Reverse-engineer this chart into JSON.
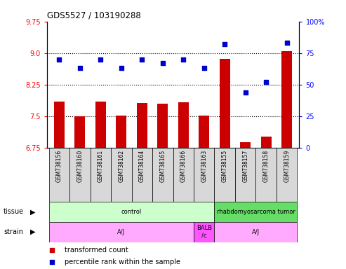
{
  "title": "GDS5527 / 103190288",
  "samples": [
    "GSM738156",
    "GSM738160",
    "GSM738161",
    "GSM738162",
    "GSM738164",
    "GSM738165",
    "GSM738166",
    "GSM738163",
    "GSM738155",
    "GSM738157",
    "GSM738158",
    "GSM738159"
  ],
  "bar_values": [
    7.85,
    7.5,
    7.85,
    7.52,
    7.82,
    7.8,
    7.83,
    7.52,
    8.87,
    6.88,
    7.02,
    9.05
  ],
  "dot_values": [
    70,
    63,
    70,
    63,
    70,
    67,
    70,
    63,
    82,
    44,
    52,
    83
  ],
  "ylim_left": [
    6.75,
    9.75
  ],
  "ylim_right": [
    0,
    100
  ],
  "yticks_left": [
    6.75,
    7.5,
    8.25,
    9.0,
    9.75
  ],
  "yticks_right": [
    0,
    25,
    50,
    75,
    100
  ],
  "hlines": [
    7.5,
    8.25,
    9.0
  ],
  "tissue_groups": [
    {
      "label": "control",
      "start": 0,
      "end": 8,
      "color": "#ccffcc"
    },
    {
      "label": "rhabdomyosarcoma tumor",
      "start": 8,
      "end": 12,
      "color": "#66dd66"
    }
  ],
  "strain_groups": [
    {
      "label": "A/J",
      "start": 0,
      "end": 7,
      "color": "#ffaaff"
    },
    {
      "label": "BALB\n/c",
      "start": 7,
      "end": 8,
      "color": "#ff55ff"
    },
    {
      "label": "A/J",
      "start": 8,
      "end": 12,
      "color": "#ffaaff"
    }
  ],
  "bar_color": "#cc0000",
  "dot_color": "#0000cc",
  "label_bg": "#d8d8d8",
  "legend_bar_label": "transformed count",
  "legend_dot_label": "percentile rank within the sample",
  "tissue_label": "tissue",
  "strain_label": "strain"
}
